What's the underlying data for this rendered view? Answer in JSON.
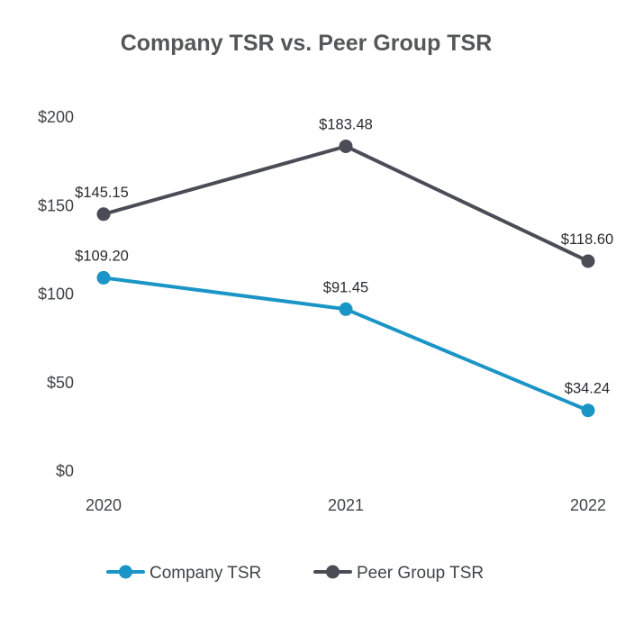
{
  "chart_data": {
    "type": "line",
    "title": "Company TSR vs. Peer Group TSR",
    "xlabel": "",
    "ylabel": "",
    "categories": [
      "2020",
      "2021",
      "2022"
    ],
    "ylim": [
      0,
      200
    ],
    "yticks": [
      0,
      50,
      100,
      150,
      200
    ],
    "ytick_labels": [
      "$0",
      "$50",
      "$100",
      "$150",
      "$200"
    ],
    "grid": false,
    "legend_position": "bottom",
    "series": [
      {
        "name": "Company TSR",
        "color": "#1a95c6",
        "values": [
          109.2,
          91.45,
          34.24
        ],
        "labels": [
          "$109.20",
          "$91.45",
          "$34.24"
        ]
      },
      {
        "name": "Peer Group TSR",
        "color": "#4a4d56",
        "values": [
          145.15,
          183.48,
          118.6
        ],
        "labels": [
          "$145.15",
          "$183.48",
          "$118.60"
        ]
      }
    ]
  }
}
